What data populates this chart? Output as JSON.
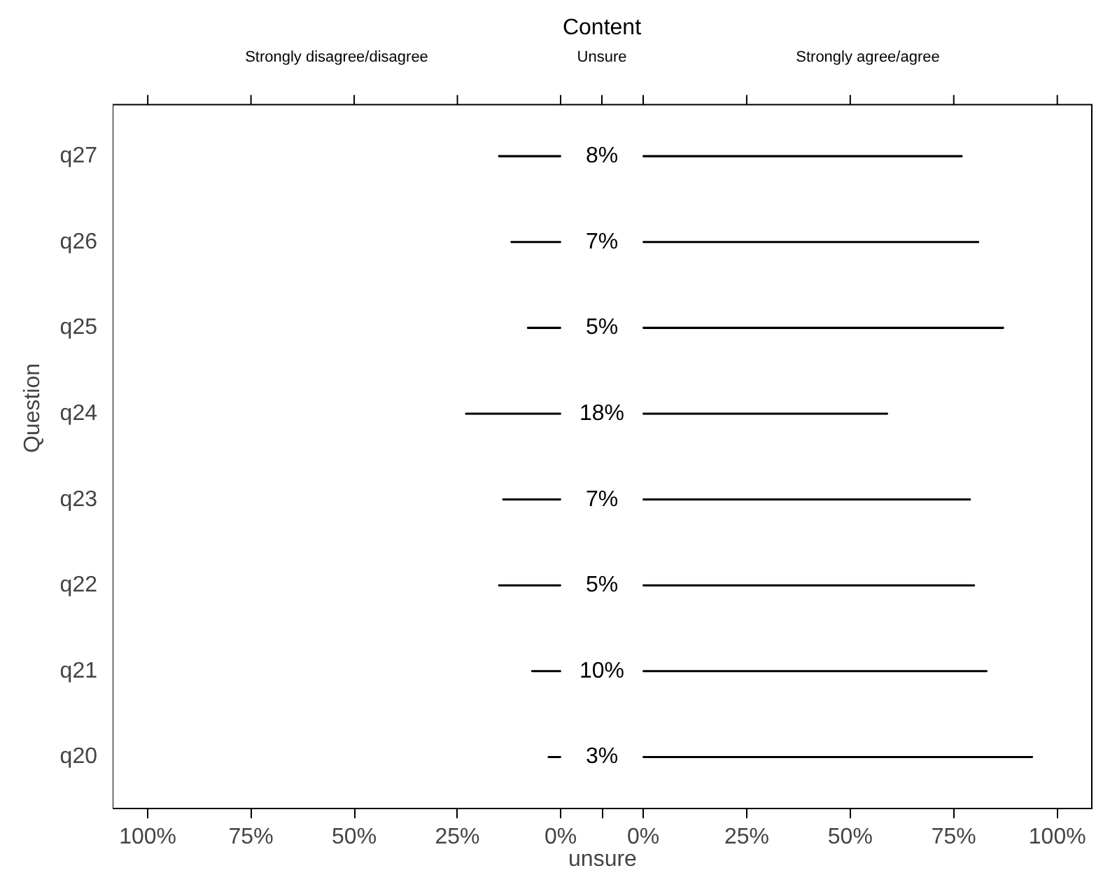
{
  "chart_data": [
    {
      "type": "bar",
      "orientation": "horizontal",
      "subtitle": "Strongly disagree/disagree",
      "ylabel": "Question",
      "categories": [
        "q27",
        "q26",
        "q25",
        "q24",
        "q23",
        "q22",
        "q21",
        "q20"
      ],
      "values": [
        15,
        12,
        8,
        23,
        14,
        15,
        7,
        3
      ],
      "color": "#000000",
      "xlim": [
        108.5,
        0
      ],
      "xticks": [
        {
          "value": 100,
          "label": "100%"
        },
        {
          "value": 75,
          "label": "75%"
        },
        {
          "value": 50,
          "label": "50%"
        },
        {
          "value": 25,
          "label": "25%"
        },
        {
          "value": 0,
          "label": "0%"
        }
      ]
    },
    {
      "type": "other",
      "title": "Content",
      "subtitle": "Unsure",
      "xlabel": "unsure",
      "values": [
        8,
        7,
        5,
        18,
        7,
        5,
        10,
        3
      ],
      "value_labels": [
        "8%",
        "7%",
        "5%",
        "18%",
        "7%",
        "5%",
        "10%",
        "3%"
      ]
    },
    {
      "type": "bar",
      "orientation": "horizontal",
      "subtitle": "Strongly agree/agree",
      "values": [
        77,
        81,
        87,
        59,
        79,
        80,
        83,
        94
      ],
      "color": "#000000",
      "xlim": [
        0,
        108.5
      ],
      "xticks": [
        {
          "value": 0,
          "label": "0%"
        },
        {
          "value": 25,
          "label": "25%"
        },
        {
          "value": 50,
          "label": "50%"
        },
        {
          "value": 75,
          "label": "75%"
        },
        {
          "value": 100,
          "label": "100%"
        }
      ],
      "tick_labels": "x"
    }
  ]
}
